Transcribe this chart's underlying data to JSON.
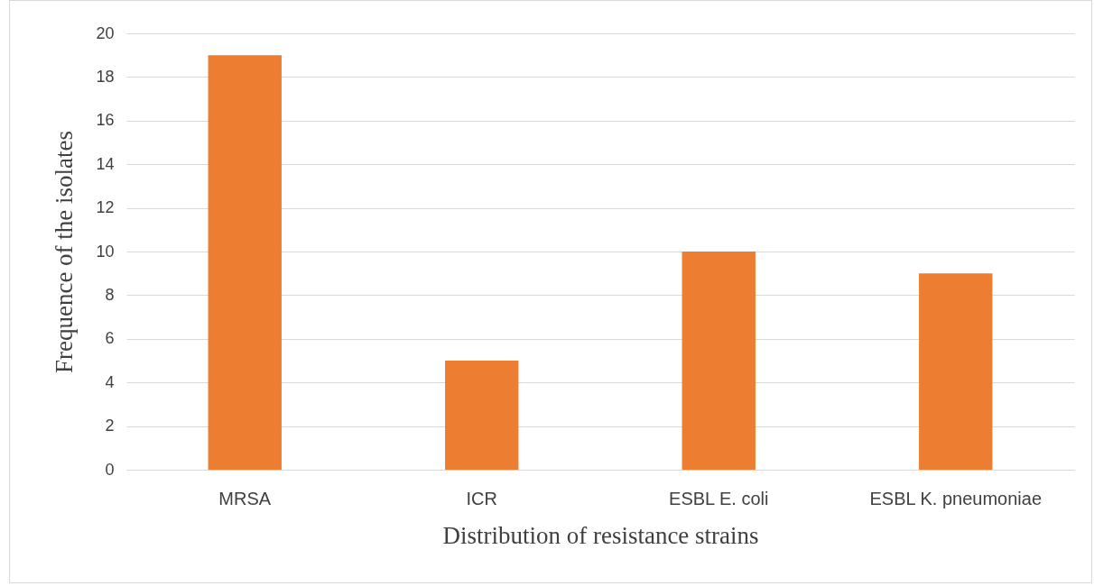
{
  "chart_data": {
    "type": "bar",
    "xlabel": "Distribution of resistance strains",
    "ylabel": "Frequence of the isolates",
    "categories": [
      "MRSA",
      "ICR",
      "ESBL E. coli",
      "ESBL K. pneumoniae"
    ],
    "values": [
      19,
      5,
      10,
      9
    ],
    "color": "#ed7d31",
    "ylim": [
      0,
      20
    ],
    "yticks": [
      0,
      2,
      4,
      6,
      8,
      10,
      12,
      14,
      16,
      18,
      20
    ],
    "grid": "y"
  }
}
